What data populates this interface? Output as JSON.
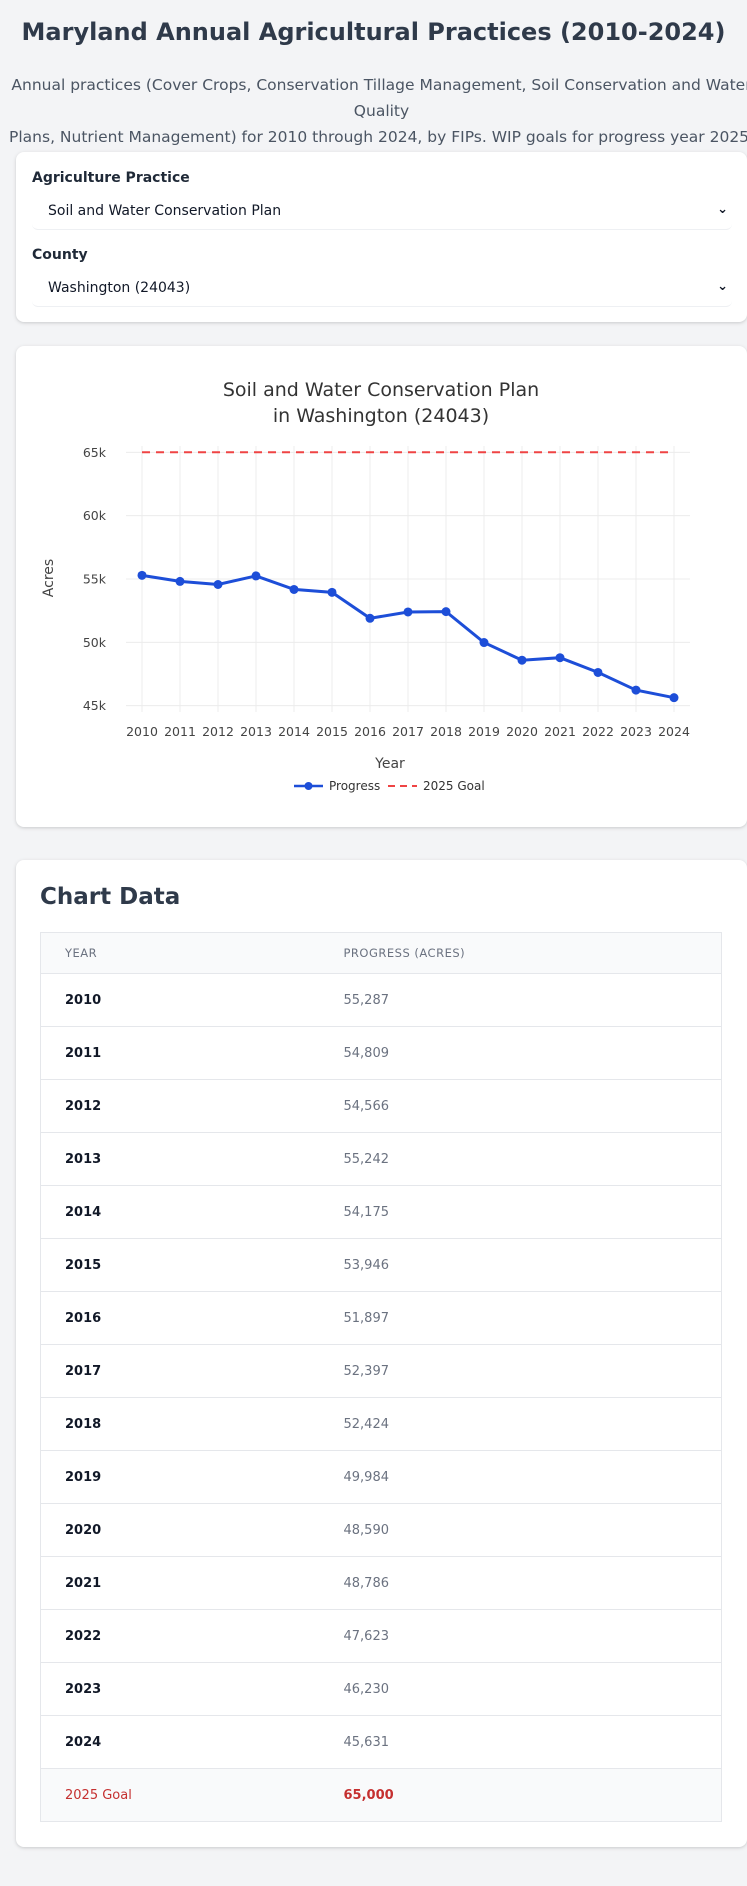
{
  "page": {
    "title": "Maryland Annual Agricultural Practices (2010-2024)",
    "subtitle_line1": "Annual practices (Cover Crops, Conservation Tillage Management, Soil Conservation and Water Quality",
    "subtitle_line2": "Plans, Nutrient Management) for 2010 through 2024, by FIPs. WIP goals for progress year 2025."
  },
  "filters": {
    "practice_label": "Agriculture Practice",
    "practice_value": "Soil and Water Conservation Plan",
    "county_label": "County",
    "county_value": "Washington (24043)"
  },
  "colors": {
    "progress": "#1d4ed8",
    "goal": "#ef4444",
    "goal_text": "#c53030"
  },
  "icons": {
    "dropdown": "chevron-down-icon"
  },
  "chart_data": {
    "type": "line",
    "title_line1": "Soil and Water Conservation Plan",
    "title_line2": "in Washington (24043)",
    "xlabel": "Year",
    "ylabel": "Acres",
    "x": [
      2010,
      2011,
      2012,
      2013,
      2014,
      2015,
      2016,
      2017,
      2018,
      2019,
      2020,
      2021,
      2022,
      2023,
      2024
    ],
    "ylim": [
      44500,
      65500
    ],
    "yticks": [
      45000,
      50000,
      55000,
      60000,
      65000
    ],
    "ytick_labels": [
      "45k",
      "50k",
      "55k",
      "60k",
      "65k"
    ],
    "grid": true,
    "legend_placement": "bottom-center",
    "series": [
      {
        "name": "Progress",
        "style": "solid-with-markers",
        "values": [
          55287,
          54809,
          54566,
          55242,
          54175,
          53946,
          51897,
          52397,
          52424,
          49984,
          48590,
          48786,
          47623,
          46230,
          45631
        ]
      },
      {
        "name": "2025 Goal",
        "style": "dashed",
        "values": [
          65000,
          65000,
          65000,
          65000,
          65000,
          65000,
          65000,
          65000,
          65000,
          65000,
          65000,
          65000,
          65000,
          65000,
          65000
        ]
      }
    ]
  },
  "table": {
    "title": "Chart Data",
    "headers": [
      "YEAR",
      "PROGRESS (ACRES)"
    ],
    "rows": [
      [
        "2010",
        "55,287"
      ],
      [
        "2011",
        "54,809"
      ],
      [
        "2012",
        "54,566"
      ],
      [
        "2013",
        "55,242"
      ],
      [
        "2014",
        "54,175"
      ],
      [
        "2015",
        "53,946"
      ],
      [
        "2016",
        "51,897"
      ],
      [
        "2017",
        "52,397"
      ],
      [
        "2018",
        "52,424"
      ],
      [
        "2019",
        "49,984"
      ],
      [
        "2020",
        "48,590"
      ],
      [
        "2021",
        "48,786"
      ],
      [
        "2022",
        "47,623"
      ],
      [
        "2023",
        "46,230"
      ],
      [
        "2024",
        "45,631"
      ]
    ],
    "goal_row": [
      "2025 Goal",
      "65,000"
    ]
  }
}
